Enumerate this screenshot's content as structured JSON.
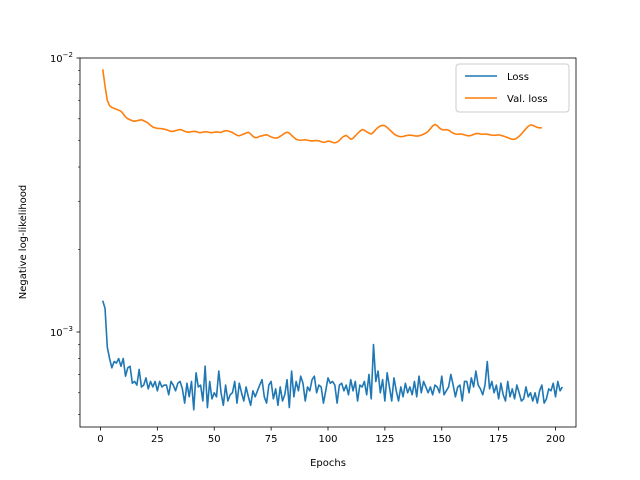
{
  "chart_data": {
    "type": "line",
    "title": "",
    "xlabel": "Epochs",
    "ylabel": "Negative log-likelihood",
    "xlim": [
      -9,
      209
    ],
    "ylim": [
      0.00045,
      0.01
    ],
    "yscale": "log",
    "grid": false,
    "legend_position": "top-right",
    "x_ticks": [
      0,
      25,
      50,
      75,
      100,
      125,
      150,
      175,
      200
    ],
    "x_tick_labels": [
      "0",
      "25",
      "50",
      "75",
      "100",
      "125",
      "150",
      "175",
      "200"
    ],
    "y_major_ticks": [
      0.001,
      0.01
    ],
    "y_tick_labels": [
      {
        "value": 0.01,
        "base": "10",
        "exp": "−2"
      },
      {
        "value": 0.001,
        "base": "10",
        "exp": "−3"
      }
    ],
    "y_minor_ticks": [
      0.0005,
      0.0006,
      0.0007,
      0.0008,
      0.0009,
      0.002,
      0.003,
      0.004,
      0.005,
      0.006,
      0.007,
      0.008,
      0.009
    ],
    "x_start": 1,
    "x_step": 1,
    "series": [
      {
        "name": "Loss",
        "color": "#1f77b4",
        "values": [
          0.0013,
          0.00122,
          0.00088,
          0.0008,
          0.00074,
          0.00078,
          0.00077,
          0.0008,
          0.00075,
          0.0008,
          0.00069,
          0.00074,
          0.00075,
          0.00065,
          0.00066,
          0.00064,
          0.00073,
          0.00063,
          0.00064,
          0.00068,
          0.00062,
          0.00066,
          0.00063,
          0.00066,
          0.00061,
          0.00066,
          0.00063,
          0.00064,
          0.00064,
          0.00059,
          0.00066,
          0.00064,
          0.00061,
          0.00065,
          0.00066,
          0.00062,
          0.00055,
          0.00065,
          0.00058,
          0.00066,
          0.00052,
          0.00071,
          0.00063,
          0.00064,
          0.00056,
          0.00075,
          0.00053,
          0.00066,
          0.00057,
          0.0006,
          0.00058,
          0.00072,
          0.0006,
          0.00054,
          0.00064,
          0.00056,
          0.00059,
          0.0006,
          0.00066,
          0.00055,
          0.00065,
          0.0006,
          0.00056,
          0.00063,
          0.00058,
          0.00054,
          0.00061,
          0.00058,
          0.00061,
          0.00064,
          0.00067,
          0.00058,
          0.00055,
          0.00064,
          0.00066,
          0.00057,
          0.00062,
          0.00054,
          0.00063,
          0.00056,
          0.00059,
          0.00067,
          0.00053,
          0.00072,
          0.00058,
          0.00066,
          0.00061,
          0.00069,
          0.00065,
          0.00056,
          0.00063,
          0.00061,
          0.00067,
          0.00069,
          0.0006,
          0.00064,
          0.00063,
          0.00055,
          0.00061,
          0.00068,
          0.00065,
          0.00066,
          0.00064,
          0.00055,
          0.00064,
          0.00065,
          0.00061,
          0.00064,
          0.00059,
          0.00067,
          0.00061,
          0.00066,
          0.00056,
          0.00064,
          0.00063,
          0.00066,
          0.00059,
          0.0007,
          0.00057,
          0.0009,
          0.00066,
          0.00072,
          0.0006,
          0.00067,
          0.00056,
          0.00071,
          0.00063,
          0.00056,
          0.00068,
          0.00061,
          0.00056,
          0.00063,
          0.00058,
          0.00065,
          0.0006,
          0.00063,
          0.00059,
          0.00066,
          0.00058,
          0.00069,
          0.0006,
          0.00066,
          0.00063,
          0.0006,
          0.00063,
          0.00059,
          0.00064,
          0.00063,
          0.0006,
          0.00069,
          0.00059,
          0.00061,
          0.00063,
          0.0007,
          0.00064,
          0.00058,
          0.00063,
          0.00064,
          0.00056,
          0.00066,
          0.00066,
          0.0006,
          0.00068,
          0.00063,
          0.00072,
          0.00064,
          0.00062,
          0.00059,
          0.00064,
          0.00078,
          0.00062,
          0.00066,
          0.0006,
          0.00064,
          0.00057,
          0.00065,
          0.00059,
          0.00056,
          0.00066,
          0.00058,
          0.00062,
          0.00057,
          0.00064,
          0.0006,
          0.00056,
          0.00057,
          0.00063,
          0.00058,
          0.0006,
          0.00056,
          0.0006,
          0.00055,
          0.00061,
          0.00064,
          0.00055,
          0.00057,
          0.00062,
          0.00061,
          0.00065,
          0.00058,
          0.00066,
          0.00061,
          0.00063
        ]
      },
      {
        "name": "Val. loss",
        "color": "#ff7f0e",
        "values": [
          0.0091,
          0.0079,
          0.007,
          0.0067,
          0.0066,
          0.00655,
          0.0065,
          0.00645,
          0.0064,
          0.00625,
          0.0061,
          0.006,
          0.00595,
          0.0059,
          0.00588,
          0.0059,
          0.00593,
          0.00595,
          0.0059,
          0.00585,
          0.00578,
          0.00568,
          0.0056,
          0.00556,
          0.00554,
          0.00553,
          0.00552,
          0.0055,
          0.00547,
          0.00543,
          0.0054,
          0.0054,
          0.00543,
          0.00546,
          0.00548,
          0.00545,
          0.0054,
          0.00537,
          0.00536,
          0.00538,
          0.0054,
          0.00539,
          0.00535,
          0.00534,
          0.00536,
          0.00538,
          0.00537,
          0.00535,
          0.00534,
          0.00536,
          0.00537,
          0.00536,
          0.00535,
          0.0054,
          0.00543,
          0.00542,
          0.00538,
          0.00535,
          0.00528,
          0.00522,
          0.0052,
          0.00524,
          0.00528,
          0.00532,
          0.00536,
          0.00528,
          0.00518,
          0.00512,
          0.00513,
          0.00518,
          0.0052,
          0.00523,
          0.00525,
          0.0052,
          0.00515,
          0.00512,
          0.0051,
          0.00512,
          0.00518,
          0.00524,
          0.00532,
          0.00536,
          0.00532,
          0.00522,
          0.00513,
          0.00505,
          0.00502,
          0.00501,
          0.00502,
          0.00503,
          0.00501,
          0.00499,
          0.00498,
          0.00499,
          0.005,
          0.00498,
          0.00495,
          0.00492,
          0.00494,
          0.00497,
          0.00496,
          0.00492,
          0.0049,
          0.00493,
          0.005,
          0.00511,
          0.00518,
          0.00522,
          0.00514,
          0.00505,
          0.00509,
          0.0052,
          0.0053,
          0.0054,
          0.00548,
          0.00545,
          0.00538,
          0.00532,
          0.00528,
          0.00536,
          0.00548,
          0.00558,
          0.00565,
          0.00568,
          0.00566,
          0.00558,
          0.00548,
          0.00538,
          0.00528,
          0.00522,
          0.00518,
          0.00516,
          0.00517,
          0.0052,
          0.00522,
          0.00523,
          0.00522,
          0.0052,
          0.00519,
          0.0052,
          0.00523,
          0.00527,
          0.00532,
          0.0054,
          0.00552,
          0.00565,
          0.00572,
          0.00566,
          0.00555,
          0.00548,
          0.00546,
          0.00548,
          0.00545,
          0.00538,
          0.00532,
          0.00528,
          0.00527,
          0.00528,
          0.00527,
          0.00524,
          0.00521,
          0.0052,
          0.00522,
          0.00526,
          0.0053,
          0.0053,
          0.00528,
          0.00527,
          0.00528,
          0.00527,
          0.00525,
          0.00523,
          0.00522,
          0.00523,
          0.00524,
          0.00522,
          0.00519,
          0.00516,
          0.00512,
          0.00508,
          0.00505,
          0.00505,
          0.0051,
          0.00518,
          0.00528,
          0.0054,
          0.00552,
          0.00563,
          0.0057,
          0.00568,
          0.00563,
          0.00558,
          0.00556,
          0.00556
        ]
      }
    ]
  }
}
